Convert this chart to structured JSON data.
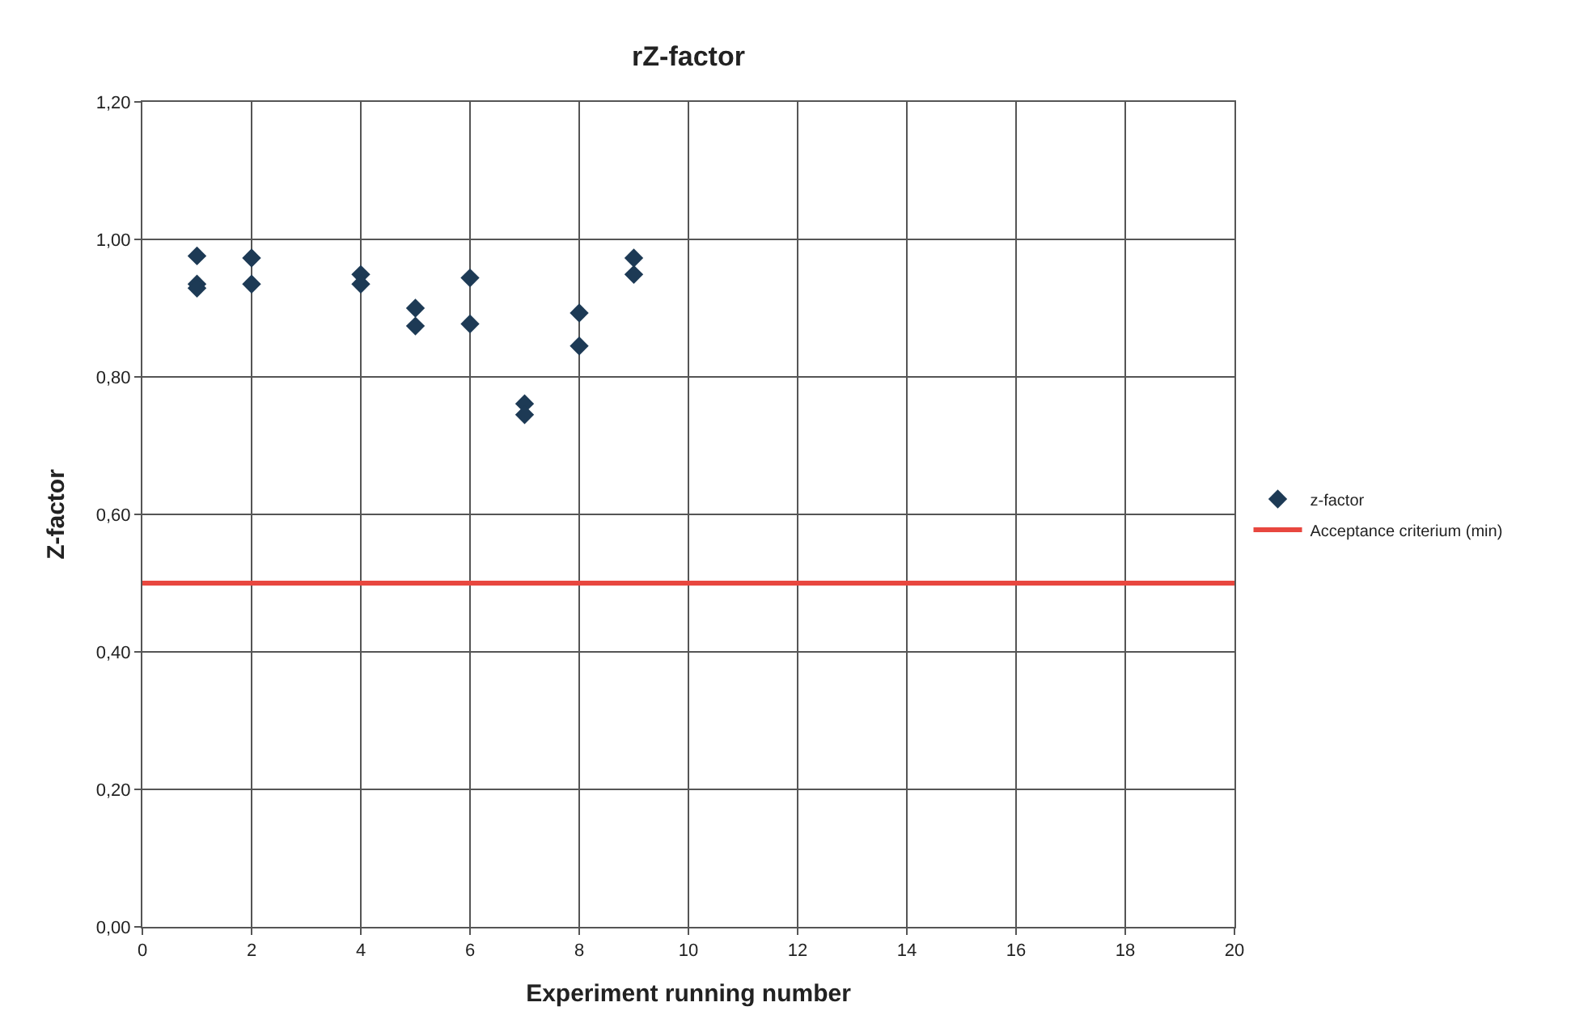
{
  "chart_data": {
    "type": "scatter",
    "title": "rZ-factor",
    "xlabel": "Experiment running number",
    "ylabel": "Z-factor",
    "series": [
      {
        "name": "z-factor",
        "color": "#1d3a55",
        "marker": "diamond",
        "x": [
          1,
          1,
          1,
          2,
          2,
          4,
          4,
          5,
          5,
          6,
          6,
          7,
          7,
          8,
          8,
          9,
          9
        ],
        "values": [
          0.976,
          0.935,
          0.929,
          0.973,
          0.935,
          0.949,
          0.935,
          0.9,
          0.874,
          0.944,
          0.877,
          0.761,
          0.745,
          0.893,
          0.845,
          0.973,
          0.949
        ]
      },
      {
        "name": "Acceptance criterium (min)",
        "type": "line",
        "color": "#e8473f",
        "marker": "none",
        "line_style": "solid",
        "x": [
          0,
          20
        ],
        "values": [
          0.5,
          0.5
        ]
      }
    ],
    "xlim": [
      0,
      20
    ],
    "xticks": [
      0,
      2,
      4,
      6,
      8,
      10,
      12,
      14,
      16,
      18,
      20
    ],
    "ylim": [
      0,
      1.2
    ],
    "yticks": [
      {
        "value": 0,
        "label": "0,00"
      },
      {
        "value": 0.2,
        "label": "0,20"
      },
      {
        "value": 0.4,
        "label": "0,40"
      },
      {
        "value": 0.6,
        "label": "0,60"
      },
      {
        "value": 0.8,
        "label": "0,80"
      },
      {
        "value": 1.0,
        "label": "1,00"
      },
      {
        "value": 1.2,
        "label": "1,20"
      }
    ],
    "grid": true,
    "legend": "right"
  }
}
